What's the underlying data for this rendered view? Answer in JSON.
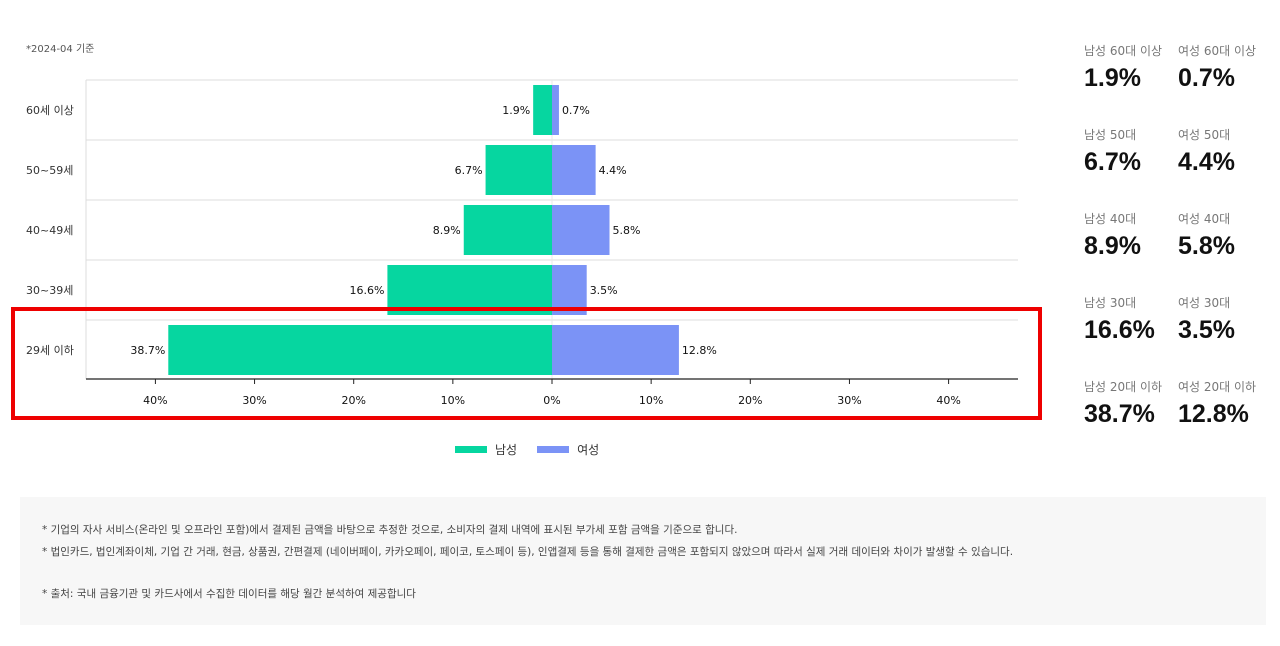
{
  "basis_note": "*2024-04 기준",
  "legend": {
    "male_label": "남성",
    "female_label": "여성"
  },
  "colors": {
    "male": "#06d6a0",
    "female": "#7b93f6",
    "highlight": "#ee0000"
  },
  "chart_data": {
    "type": "bar",
    "orientation": "horizontal-diverging",
    "categories": [
      "60세 이상",
      "50~59세",
      "40~49세",
      "30~39세",
      "29세 이하"
    ],
    "series": [
      {
        "name": "남성",
        "values": [
          1.9,
          6.7,
          8.9,
          16.6,
          38.7
        ],
        "labels": [
          "1.9%",
          "6.7%",
          "8.9%",
          "16.6%",
          "38.7%"
        ]
      },
      {
        "name": "여성",
        "values": [
          0.7,
          4.4,
          5.8,
          3.5,
          12.8
        ],
        "labels": [
          "0.7%",
          "4.4%",
          "5.8%",
          "3.5%",
          "12.8%"
        ]
      }
    ],
    "xlim": [
      -47,
      47
    ],
    "xticks": [
      -40,
      -30,
      -20,
      -10,
      0,
      10,
      20,
      30,
      40
    ],
    "xtick_labels": [
      "40%",
      "30%",
      "20%",
      "10%",
      "0%",
      "10%",
      "20%",
      "30%",
      "40%"
    ],
    "grid": true,
    "legend_position": "bottom-center",
    "highlighted_category": "29세 이하"
  },
  "side_stats": [
    {
      "male_label": "남성 60대 이상",
      "male_value": "1.9%",
      "female_label": "여성 60대 이상",
      "female_value": "0.7%"
    },
    {
      "male_label": "남성 50대",
      "male_value": "6.7%",
      "female_label": "여성 50대",
      "female_value": "4.4%"
    },
    {
      "male_label": "남성 40대",
      "male_value": "8.9%",
      "female_label": "여성 40대",
      "female_value": "5.8%"
    },
    {
      "male_label": "남성 30대",
      "male_value": "16.6%",
      "female_label": "여성 30대",
      "female_value": "3.5%"
    },
    {
      "male_label": "남성 20대 이하",
      "male_value": "38.7%",
      "female_label": "여성 20대 이하",
      "female_value": "12.8%"
    }
  ],
  "notes": {
    "line1": "* 기업의 자사 서비스(온라인 및 오프라인 포함)에서 결제된 금액을 바탕으로 추정한 것으로, 소비자의 결제 내역에 표시된 부가세 포함 금액을 기준으로 합니다.",
    "line2": "* 법인카드, 법인계좌이체, 기업 간 거래, 현금, 상품권, 간편결제 (네이버페이, 카카오페이, 페이코, 토스페이 등), 인앱결제 등을 통해 결제한 금액은 포함되지 않았으며 따라서 실제 거래 데이터와 차이가 발생할 수 있습니다.",
    "source": "* 출처:   국내 금융기관 및 카드사에서 수집한 데이터를 해당 월간 분석하여 제공합니다"
  }
}
